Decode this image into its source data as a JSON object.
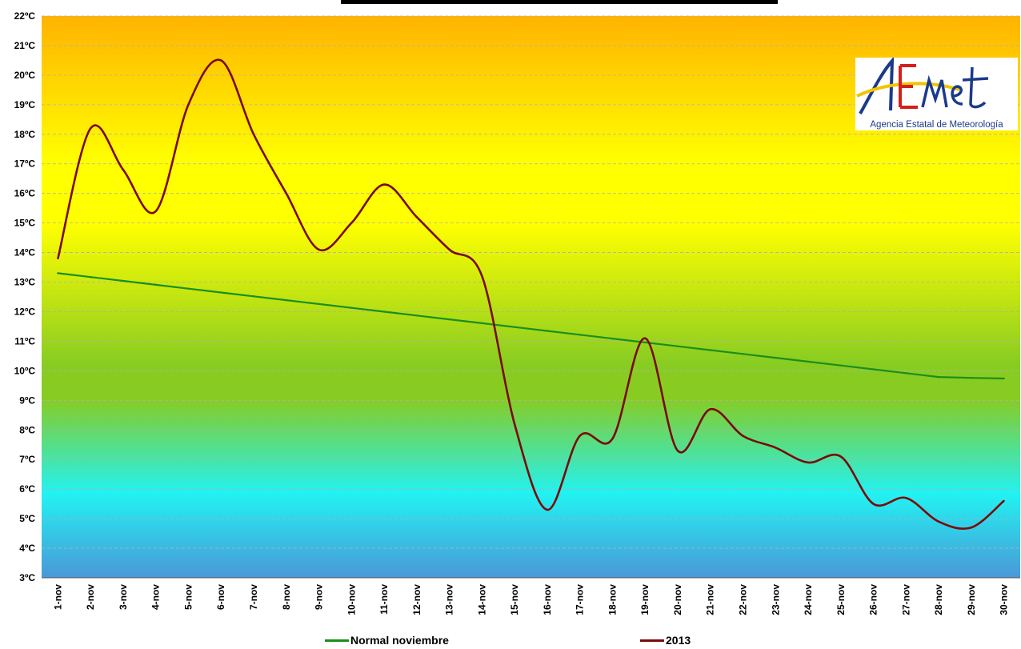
{
  "colors": {
    "normal": "#1a8f1a",
    "year": "#7a0a0a",
    "gradient_top": "#ffb300",
    "gradient_yellow": "#ffff00",
    "gradient_green": "#88cc22",
    "gradient_cyan": "#22f2f2",
    "gradient_bottom": "#4a98d8"
  },
  "logo": {
    "wordmark": "AEMet",
    "caption": "Agencia Estatal de Meteorología"
  },
  "chart_data": {
    "type": "line",
    "title": "",
    "xlabel": "",
    "ylabel": "",
    "ylim": [
      3,
      22
    ],
    "y_ticks": [
      "3ºC",
      "4ºC",
      "5ºC",
      "6ºC",
      "7ºC",
      "8ºC",
      "9ºC",
      "10ºC",
      "11ºC",
      "12ºC",
      "13ºC",
      "14ºC",
      "15ºC",
      "16ºC",
      "17ºC",
      "18ºC",
      "19ºC",
      "20ºC",
      "21ºC",
      "22ºC"
    ],
    "categories": [
      "1-nov",
      "2-nov",
      "3-nov",
      "4-nov",
      "5-nov",
      "6-nov",
      "7-nov",
      "8-nov",
      "9-nov",
      "10-nov",
      "11-nov",
      "12-nov",
      "13-nov",
      "14-nov",
      "15-nov",
      "16-nov",
      "17-nov",
      "18-nov",
      "19-nov",
      "20-nov",
      "21-nov",
      "22-nov",
      "23-nov",
      "24-nov",
      "25-nov",
      "26-nov",
      "27-nov",
      "28-nov",
      "29-nov",
      "30-nov"
    ],
    "grid": true,
    "legend_position": "bottom",
    "series": [
      {
        "name": "Normal noviembre",
        "color": "#1a8f1a",
        "values": [
          13.3,
          13.17,
          13.04,
          12.91,
          12.78,
          12.65,
          12.52,
          12.39,
          12.26,
          12.13,
          12.0,
          11.87,
          11.74,
          11.61,
          11.48,
          11.35,
          11.22,
          11.09,
          10.96,
          10.83,
          10.7,
          10.57,
          10.44,
          10.31,
          10.18,
          10.05,
          9.92,
          9.79,
          9.76,
          9.74
        ]
      },
      {
        "name": "2013",
        "color": "#7a0a0a",
        "values": [
          13.8,
          18.2,
          16.8,
          15.4,
          19.0,
          20.5,
          18.0,
          16.0,
          14.1,
          15.0,
          16.3,
          15.2,
          14.1,
          13.2,
          8.2,
          5.3,
          7.8,
          7.7,
          11.1,
          7.3,
          8.7,
          7.8,
          7.4,
          6.9,
          7.1,
          5.5,
          5.7,
          4.9,
          4.7,
          5.6
        ]
      }
    ]
  }
}
